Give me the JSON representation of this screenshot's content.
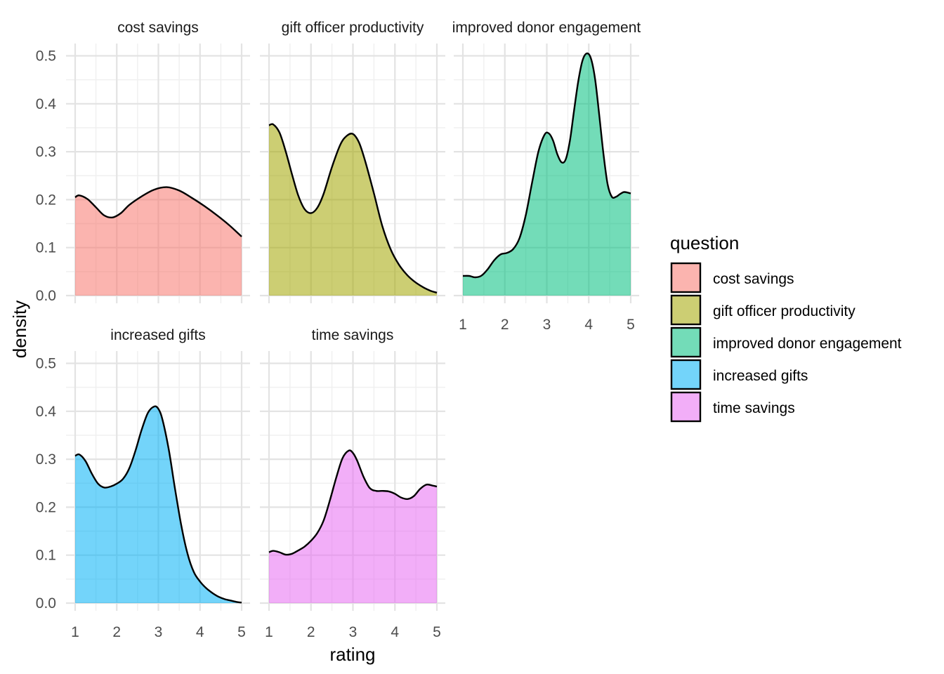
{
  "chart_data": {
    "type": "area",
    "subtype": "faceted density",
    "xlabel": "rating",
    "ylabel": "density",
    "xlim": [
      1,
      5
    ],
    "ylim": [
      0,
      0.5
    ],
    "x_ticks": [
      "1",
      "2",
      "3",
      "4",
      "5"
    ],
    "y_ticks": [
      "0.0",
      "0.1",
      "0.2",
      "0.3",
      "0.4",
      "0.5"
    ],
    "legend": {
      "title": "question",
      "position": "right"
    },
    "grid": true,
    "facets": [
      {
        "name": "cost savings",
        "strip_label": "cost savings",
        "color": "#F8766D",
        "x": [
          1,
          1.1,
          1.3,
          1.5,
          1.7,
          1.9,
          2.1,
          2.3,
          2.6,
          2.9,
          3.2,
          3.5,
          3.8,
          4.1,
          4.4,
          4.7,
          5.0
        ],
        "y": [
          0.205,
          0.209,
          0.201,
          0.184,
          0.167,
          0.163,
          0.172,
          0.189,
          0.207,
          0.221,
          0.226,
          0.219,
          0.204,
          0.187,
          0.168,
          0.147,
          0.123
        ]
      },
      {
        "name": "gift officer productivity",
        "strip_label": "gift officer productivity",
        "color": "#A3A500",
        "x": [
          1,
          1.1,
          1.25,
          1.4,
          1.55,
          1.7,
          1.85,
          2.0,
          2.15,
          2.3,
          2.5,
          2.7,
          2.85,
          3.0,
          3.15,
          3.3,
          3.5,
          3.7,
          3.9,
          4.1,
          4.3,
          4.5,
          4.7,
          4.85,
          5.0
        ],
        "y": [
          0.355,
          0.357,
          0.34,
          0.3,
          0.252,
          0.208,
          0.18,
          0.172,
          0.183,
          0.212,
          0.268,
          0.315,
          0.333,
          0.337,
          0.318,
          0.278,
          0.213,
          0.145,
          0.096,
          0.064,
          0.042,
          0.027,
          0.016,
          0.01,
          0.006
        ]
      },
      {
        "name": "improved donor engagement",
        "strip_label": "improved donor engagement",
        "color": "#00BF7D",
        "x": [
          1,
          1.15,
          1.3,
          1.45,
          1.6,
          1.75,
          1.9,
          2.05,
          2.2,
          2.35,
          2.5,
          2.65,
          2.8,
          2.95,
          3.05,
          3.15,
          3.25,
          3.35,
          3.45,
          3.55,
          3.65,
          3.75,
          3.85,
          3.95,
          4.05,
          4.15,
          4.25,
          4.35,
          4.45,
          4.55,
          4.65,
          4.75,
          4.85,
          5.0
        ],
        "y": [
          0.041,
          0.041,
          0.038,
          0.042,
          0.056,
          0.074,
          0.086,
          0.089,
          0.097,
          0.12,
          0.168,
          0.236,
          0.3,
          0.336,
          0.338,
          0.323,
          0.295,
          0.278,
          0.284,
          0.323,
          0.386,
          0.447,
          0.49,
          0.505,
          0.495,
          0.452,
          0.376,
          0.295,
          0.232,
          0.206,
          0.206,
          0.212,
          0.216,
          0.213
        ]
      },
      {
        "name": "increased gifts",
        "strip_label": "increased gifts",
        "color": "#00B0F6",
        "x": [
          1,
          1.1,
          1.25,
          1.4,
          1.55,
          1.7,
          1.85,
          2.0,
          2.15,
          2.3,
          2.45,
          2.6,
          2.75,
          2.9,
          3.0,
          3.1,
          3.25,
          3.4,
          3.55,
          3.7,
          3.85,
          4.0,
          4.15,
          4.3,
          4.45,
          4.6,
          4.75,
          4.9,
          5.0
        ],
        "y": [
          0.307,
          0.31,
          0.296,
          0.27,
          0.249,
          0.241,
          0.243,
          0.249,
          0.259,
          0.281,
          0.318,
          0.362,
          0.397,
          0.41,
          0.405,
          0.382,
          0.32,
          0.238,
          0.162,
          0.103,
          0.065,
          0.045,
          0.031,
          0.021,
          0.013,
          0.008,
          0.005,
          0.002,
          0.001
        ]
      },
      {
        "name": "time savings",
        "strip_label": "time savings",
        "color": "#E76BF3",
        "x": [
          1,
          1.1,
          1.25,
          1.4,
          1.55,
          1.7,
          1.85,
          2.0,
          2.15,
          2.3,
          2.45,
          2.6,
          2.75,
          2.9,
          3.0,
          3.1,
          3.25,
          3.4,
          3.55,
          3.7,
          3.85,
          4.0,
          4.15,
          4.3,
          4.45,
          4.6,
          4.75,
          4.9,
          5.0
        ],
        "y": [
          0.106,
          0.109,
          0.106,
          0.101,
          0.103,
          0.11,
          0.118,
          0.13,
          0.146,
          0.172,
          0.214,
          0.261,
          0.302,
          0.318,
          0.313,
          0.297,
          0.264,
          0.24,
          0.234,
          0.234,
          0.233,
          0.228,
          0.22,
          0.217,
          0.223,
          0.238,
          0.247,
          0.245,
          0.243
        ]
      }
    ]
  }
}
